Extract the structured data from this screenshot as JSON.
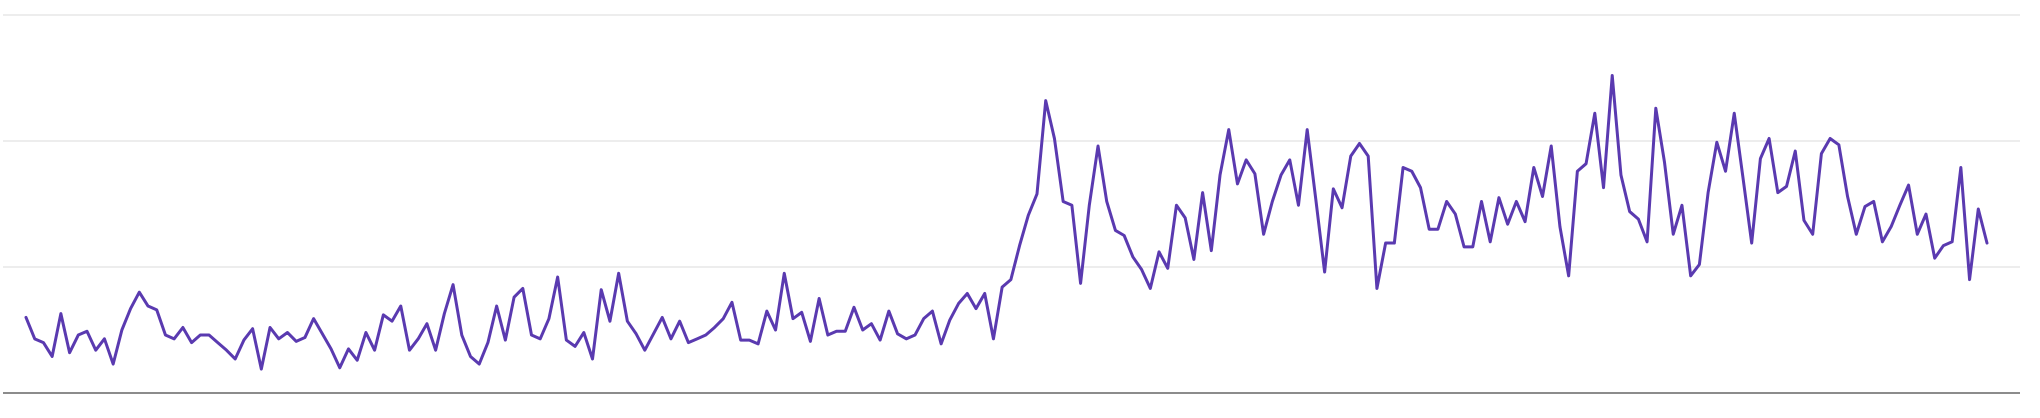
{
  "chart_data": {
    "type": "line",
    "color": "#5a3ab0",
    "ylim": [
      0,
      300
    ],
    "yticks": [
      0,
      100,
      200,
      300
    ],
    "grid": true,
    "values": [
      60,
      43,
      40,
      29,
      63,
      32,
      46,
      49,
      34,
      43,
      23,
      50,
      67,
      80,
      69,
      66,
      46,
      43,
      52,
      40,
      46,
      46,
      40,
      34,
      27,
      42,
      51,
      19,
      52,
      43,
      48,
      41,
      44,
      59,
      47,
      35,
      20,
      35,
      26,
      48,
      34,
      62,
      57,
      69,
      34,
      43,
      55,
      34,
      63,
      86,
      46,
      29,
      23,
      40,
      69,
      42,
      76,
      83,
      46,
      43,
      59,
      92,
      42,
      37,
      48,
      27,
      82,
      57,
      95,
      57,
      47,
      34,
      47,
      60,
      43,
      57,
      40,
      43,
      46,
      52,
      59,
      72,
      42,
      42,
      39,
      65,
      50,
      95,
      59,
      64,
      41,
      75,
      46,
      49,
      49,
      68,
      50,
      55,
      42,
      65,
      47,
      43,
      46,
      59,
      65,
      39,
      58,
      71,
      79,
      67,
      79,
      43,
      84,
      90,
      117,
      141,
      158,
      232,
      202,
      152,
      149,
      87,
      149,
      196,
      152,
      129,
      125,
      108,
      98,
      83,
      112,
      99,
      149,
      139,
      106,
      159,
      113,
      173,
      209,
      166,
      185,
      174,
      126,
      152,
      173,
      185,
      149,
      209,
      153,
      96,
      162,
      147,
      188,
      198,
      188,
      83,
      119,
      119,
      179,
      176,
      163,
      130,
      130,
      152,
      142,
      116,
      116,
      152,
      120,
      155,
      134,
      152,
      136,
      179,
      156,
      196,
      132,
      93,
      176,
      182,
      222,
      163,
      252,
      173,
      144,
      138,
      120,
      226,
      183,
      126,
      149,
      93,
      102,
      159,
      199,
      176,
      222,
      171,
      119,
      186,
      202,
      159,
      164,
      192,
      137,
      126,
      190,
      202,
      197,
      156,
      126,
      148,
      152,
      120,
      132,
      149,
      165,
      126,
      142,
      107,
      117,
      120,
      179,
      90,
      146,
      119
    ]
  }
}
